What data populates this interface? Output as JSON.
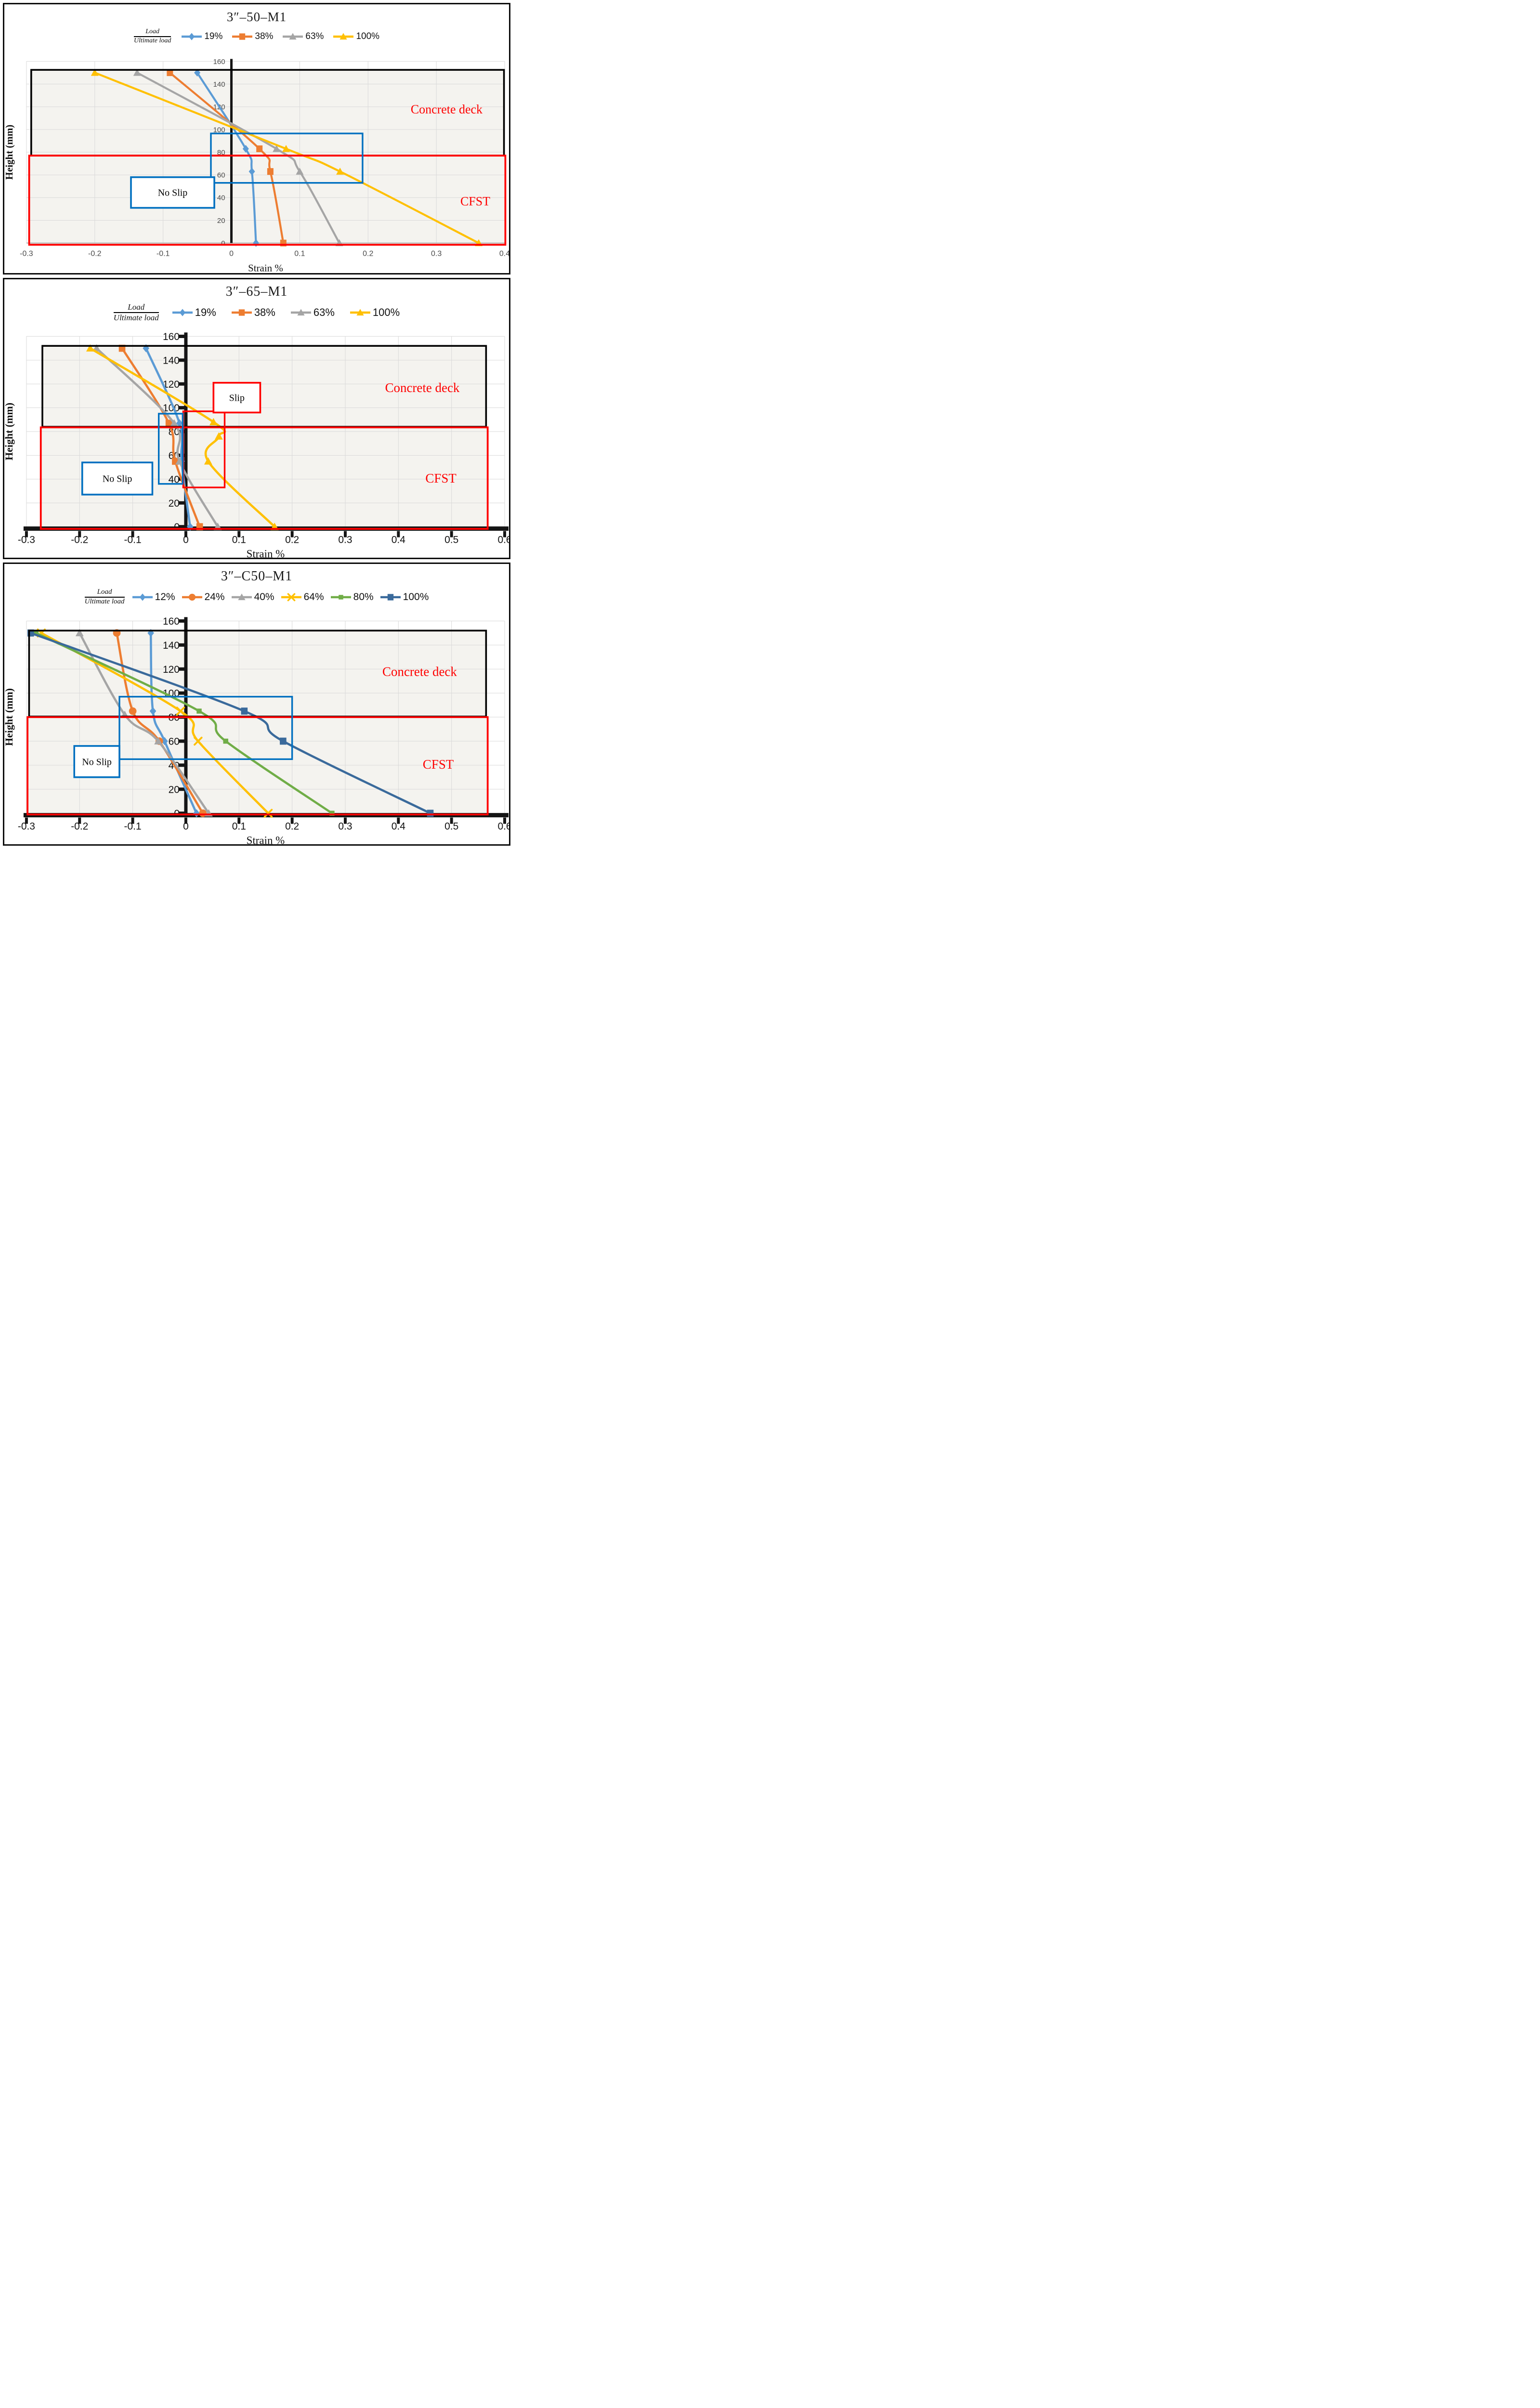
{
  "legend_ratio": {
    "numerator": "Load",
    "denominator": "Ultimate load"
  },
  "colors": {
    "series_blue": "#5B9BD5",
    "series_orange": "#ED7D31",
    "series_gray": "#A5A5A5",
    "series_yellow": "#FFC000",
    "series_green": "#70AD47",
    "series_darkblue": "#3A6A9B",
    "annotation_blue": "#0070C0",
    "annotation_red": "#FF0000",
    "grid": "#d9d9d9",
    "axis": "#151515",
    "region_fill": "#f4f3ef",
    "tick_text_light": "#4a4a4a",
    "tick_text_dark": "#111111"
  },
  "chart_data": [
    {
      "type": "line",
      "title": "3″–50–M1",
      "xlabel": "Strain %",
      "ylabel": "Height (mm)",
      "xlim": [
        -0.3,
        0.4
      ],
      "ylim": [
        0,
        160
      ],
      "xticks": [
        "-0.3",
        "-0.2",
        "-0.1",
        "0",
        "0.1",
        "0.2",
        "0.3",
        "0.4"
      ],
      "yticks": [
        0,
        20,
        40,
        60,
        80,
        100,
        120,
        140,
        160
      ],
      "axis_style": "plain",
      "grid": true,
      "legend_items": [
        {
          "label": "19%",
          "color": "#5B9BD5",
          "marker": "diamond"
        },
        {
          "label": "38%",
          "color": "#ED7D31",
          "marker": "square"
        },
        {
          "label": "63%",
          "color": "#A5A5A5",
          "marker": "triangle"
        },
        {
          "label": "100%",
          "color": "#FFC000",
          "marker": "triangle"
        }
      ],
      "series": [
        {
          "name": "19%",
          "color": "#5B9BD5",
          "marker": "diamond",
          "points": [
            [
              -0.05,
              150
            ],
            [
              0.021,
              83
            ],
            [
              0.03,
              63
            ],
            [
              0.036,
              0
            ]
          ]
        },
        {
          "name": "38%",
          "color": "#ED7D31",
          "marker": "square",
          "points": [
            [
              -0.09,
              150
            ],
            [
              0.041,
              83
            ],
            [
              0.057,
              63
            ],
            [
              0.076,
              0
            ]
          ]
        },
        {
          "name": "63%",
          "color": "#A5A5A5",
          "marker": "triangle",
          "points": [
            [
              -0.138,
              150
            ],
            [
              0.066,
              83
            ],
            [
              0.1,
              63
            ],
            [
              0.158,
              0
            ]
          ]
        },
        {
          "name": "100%",
          "color": "#FFC000",
          "marker": "triangle",
          "points": [
            [
              -0.2,
              150
            ],
            [
              0.08,
              83
            ],
            [
              0.159,
              63
            ],
            [
              0.362,
              0
            ]
          ]
        }
      ],
      "regions": [
        {
          "name": "concrete-deck",
          "border": "#000000",
          "x": [
            -0.293,
            0.399
          ],
          "y": [
            77,
            152.5
          ]
        },
        {
          "name": "cfst",
          "border": "#FF0000",
          "x": [
            -0.296,
            0.401
          ],
          "y": [
            -1.5,
            77
          ]
        }
      ],
      "region_labels": [
        {
          "text": "Concrete deck",
          "x": 0.315,
          "y": 118
        },
        {
          "text": "CFST",
          "x": 0.357,
          "y": 37
        }
      ],
      "annotation_boxes": [
        {
          "color": "#0070C0",
          "x": [
            -0.03,
            0.192
          ],
          "y": [
            53,
            96.5
          ]
        }
      ],
      "annotation_labels": [
        {
          "text": "No Slip",
          "color": "#0070C0",
          "x": [
            -0.147,
            -0.025
          ],
          "y": [
            31,
            58
          ]
        }
      ]
    },
    {
      "type": "line",
      "title": "3″–65–M1",
      "xlabel": "Strain %",
      "ylabel": "Height (mm)",
      "xlim": [
        -0.3,
        0.6
      ],
      "ylim": [
        0,
        160
      ],
      "xticks": [
        "-0.3",
        "-0.2",
        "-0.1",
        "0",
        "0.1",
        "0.2",
        "0.3",
        "0.4",
        "0.5",
        "0.6"
      ],
      "yticks": [
        0,
        20,
        40,
        60,
        80,
        100,
        120,
        140,
        160
      ],
      "axis_style": "ticked",
      "grid": false,
      "legend_items": [
        {
          "label": "19%",
          "color": "#5B9BD5",
          "marker": "diamond"
        },
        {
          "label": "38%",
          "color": "#ED7D31",
          "marker": "square"
        },
        {
          "label": "63%",
          "color": "#A5A5A5",
          "marker": "triangle"
        },
        {
          "label": "100%",
          "color": "#FFC000",
          "marker": "triangle"
        }
      ],
      "series": [
        {
          "name": "19%",
          "color": "#5B9BD5",
          "marker": "diamond",
          "points": [
            [
              -0.075,
              150
            ],
            [
              -0.012,
              87
            ],
            [
              -0.008,
              55
            ],
            [
              0.008,
              0
            ]
          ]
        },
        {
          "name": "38%",
          "color": "#ED7D31",
          "marker": "square",
          "points": [
            [
              -0.12,
              150
            ],
            [
              -0.032,
              87
            ],
            [
              -0.02,
              55
            ],
            [
              0.026,
              0
            ]
          ]
        },
        {
          "name": "63%",
          "color": "#A5A5A5",
          "marker": "triangle",
          "points": [
            [
              -0.168,
              150
            ],
            [
              -0.022,
              87
            ],
            [
              -0.012,
              55
            ],
            [
              0.06,
              0
            ]
          ]
        },
        {
          "name": "100%",
          "color": "#FFC000",
          "marker": "triangle",
          "points": [
            [
              -0.18,
              150
            ],
            [
              0.052,
              88
            ],
            [
              0.062,
              76
            ],
            [
              0.042,
              55
            ],
            [
              0.167,
              0
            ]
          ]
        }
      ],
      "regions": [
        {
          "name": "concrete-deck",
          "border": "#000000",
          "x": [
            -0.27,
            0.565
          ],
          "y": [
            84,
            152
          ]
        },
        {
          "name": "cfst",
          "border": "#FF0000",
          "x": [
            -0.273,
            0.568
          ],
          "y": [
            -1.8,
            83.5
          ]
        }
      ],
      "region_labels": [
        {
          "text": "Concrete deck",
          "x": 0.445,
          "y": 117
        },
        {
          "text": "CFST",
          "x": 0.48,
          "y": 41
        }
      ],
      "annotation_boxes": [
        {
          "color": "#FF0000",
          "x": [
            -0.005,
            0.073
          ],
          "y": [
            33,
            97
          ]
        },
        {
          "color": "#0070C0",
          "x": [
            -0.051,
            -0.006
          ],
          "y": [
            36,
            95
          ]
        }
      ],
      "annotation_labels": [
        {
          "text": "Slip",
          "color": "#FF0000",
          "x": [
            0.052,
            0.14
          ],
          "y": [
            96,
            121
          ]
        },
        {
          "text": "No Slip",
          "color": "#0070C0",
          "x": [
            -0.195,
            -0.063
          ],
          "y": [
            27,
            54
          ]
        }
      ]
    },
    {
      "type": "line",
      "title": "3″–C50–M1",
      "xlabel": "Strain %",
      "ylabel": "Height (mm)",
      "xlim": [
        -0.3,
        0.6
      ],
      "ylim": [
        0,
        160
      ],
      "xticks": [
        "-0.3",
        "-0.2",
        "-0.1",
        "0",
        "0.1",
        "0.2",
        "0.3",
        "0.4",
        "0.5",
        "0.6"
      ],
      "yticks": [
        0,
        20,
        40,
        60,
        80,
        100,
        120,
        140,
        160
      ],
      "axis_style": "ticked",
      "grid": false,
      "legend_items": [
        {
          "label": "12%",
          "color": "#5B9BD5",
          "marker": "diamond"
        },
        {
          "label": "24%",
          "color": "#ED7D31",
          "marker": "circle"
        },
        {
          "label": "40%",
          "color": "#A5A5A5",
          "marker": "triangle"
        },
        {
          "label": "64%",
          "color": "#FFC000",
          "marker": "x"
        },
        {
          "label": "80%",
          "color": "#70AD47",
          "marker": "square-small"
        },
        {
          "label": "100%",
          "color": "#3A6A9B",
          "marker": "square"
        }
      ],
      "series": [
        {
          "name": "12%",
          "color": "#5B9BD5",
          "marker": "diamond",
          "points": [
            [
              -0.066,
              150
            ],
            [
              -0.062,
              85
            ],
            [
              -0.04,
              60
            ],
            [
              0.02,
              0
            ]
          ]
        },
        {
          "name": "24%",
          "color": "#ED7D31",
          "marker": "circle",
          "points": [
            [
              -0.13,
              150
            ],
            [
              -0.1,
              85
            ],
            [
              -0.05,
              60
            ],
            [
              0.032,
              0
            ]
          ]
        },
        {
          "name": "40%",
          "color": "#A5A5A5",
          "marker": "triangle",
          "points": [
            [
              -0.2,
              150
            ],
            [
              -0.115,
              82
            ],
            [
              -0.052,
              60
            ],
            [
              0.043,
              0
            ]
          ]
        },
        {
          "name": "64%",
          "color": "#FFC000",
          "marker": "x",
          "points": [
            [
              -0.272,
              150
            ],
            [
              -0.01,
              85
            ],
            [
              0.023,
              60
            ],
            [
              0.155,
              0
            ]
          ]
        },
        {
          "name": "80%",
          "color": "#70AD47",
          "marker": "square-small",
          "points": [
            [
              -0.282,
              150
            ],
            [
              0.025,
              85
            ],
            [
              0.075,
              60
            ],
            [
              0.275,
              0
            ]
          ]
        },
        {
          "name": "100%",
          "color": "#3A6A9B",
          "marker": "square",
          "points": [
            [
              -0.292,
              150
            ],
            [
              0.11,
              85
            ],
            [
              0.183,
              60
            ],
            [
              0.46,
              0
            ]
          ]
        }
      ],
      "regions": [
        {
          "name": "concrete-deck",
          "border": "#000000",
          "x": [
            -0.295,
            0.565
          ],
          "y": [
            80.5,
            152
          ]
        },
        {
          "name": "cfst",
          "border": "#FF0000",
          "x": [
            -0.298,
            0.568
          ],
          "y": [
            -1,
            80
          ]
        }
      ],
      "region_labels": [
        {
          "text": "Concrete deck",
          "x": 0.44,
          "y": 118
        },
        {
          "text": "CFST",
          "x": 0.475,
          "y": 41
        }
      ],
      "annotation_boxes": [
        {
          "color": "#0070C0",
          "x": [
            -0.125,
            0.2
          ],
          "y": [
            45,
            97
          ]
        }
      ],
      "annotation_labels": [
        {
          "text": "No Slip",
          "color": "#0070C0",
          "x": [
            -0.21,
            -0.125
          ],
          "y": [
            30,
            56
          ]
        }
      ]
    }
  ]
}
